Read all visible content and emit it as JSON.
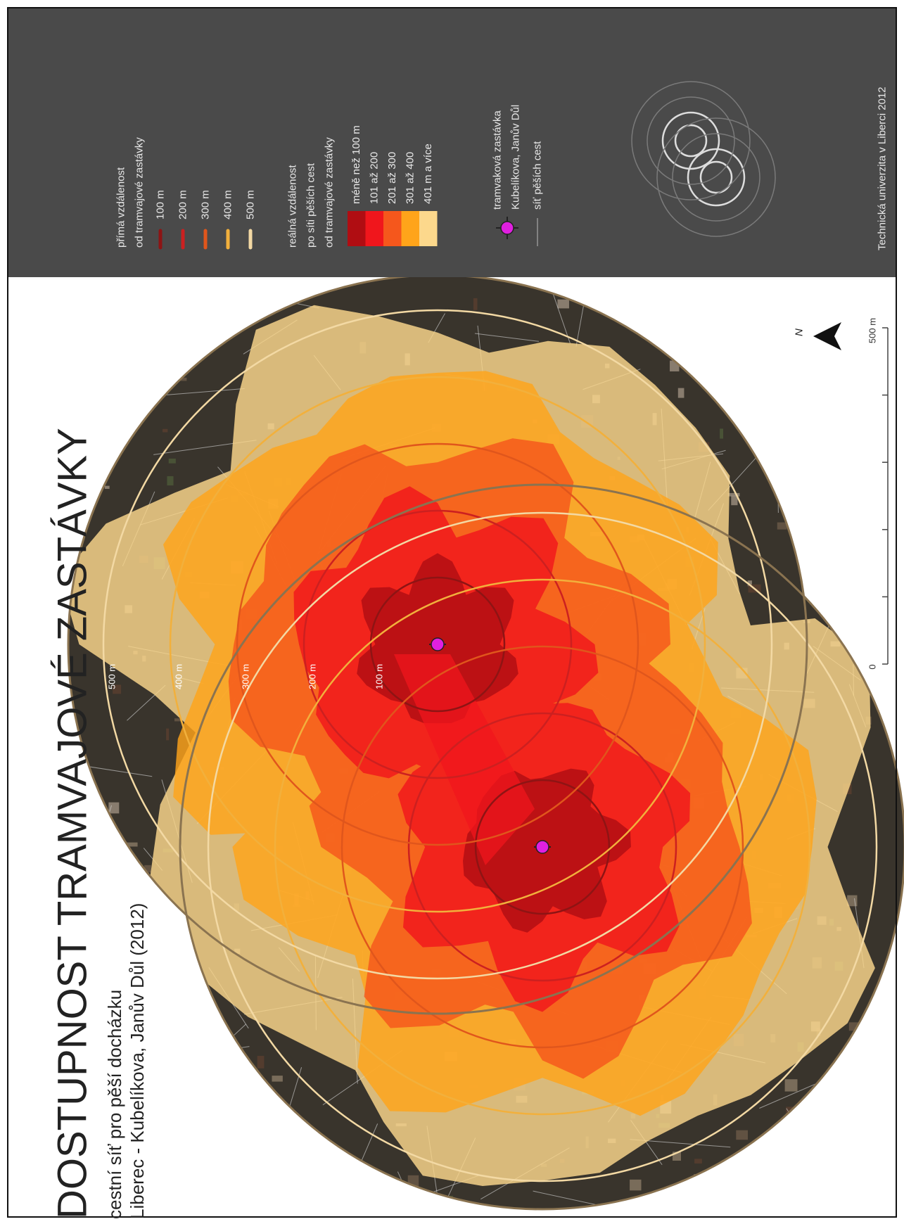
{
  "title": "DOSTUPNOST TRAMVAJOVÉ ZASTÁVKY",
  "subtitle": [
    "cestní síť pro pěší docházku",
    "Liberec - Kubelíkova, Janův Důl (2012)"
  ],
  "legend": {
    "direct": {
      "heading": [
        "přímá vzdálenost",
        "od tramvajové zastávky"
      ],
      "items": [
        {
          "label": "100 m",
          "color": "#8e1414"
        },
        {
          "label": "200 m",
          "color": "#cc2020"
        },
        {
          "label": "300 m",
          "color": "#e0561c"
        },
        {
          "label": "400 m",
          "color": "#f2b03c"
        },
        {
          "label": "500 m",
          "color": "#f3d9a4"
        }
      ]
    },
    "real": {
      "heading": [
        "reálná vzdálenost",
        "po síti pěších cest",
        "od tramvajové zastávky"
      ],
      "items": [
        {
          "label": "méně než 100 m",
          "color": "#b00d12"
        },
        {
          "label": "101 až 200",
          "color": "#f0161c"
        },
        {
          "label": "201 až 300",
          "color": "#f5571c"
        },
        {
          "label": "301 až 400",
          "color": "#ffa41a"
        },
        {
          "label": "401 m a více",
          "color": "#fcd88c"
        }
      ]
    },
    "stop": [
      "tramvaková zastávka",
      "Kubelíkova, Janův Důl"
    ],
    "network": "síť pěších cest"
  },
  "footer": "Technická univerzita v Liberci 2012",
  "map": {
    "ring_labels": [
      "500 m",
      "400 m",
      "300 m",
      "200 m",
      "100 m"
    ],
    "north": "N",
    "scale": [
      "0",
      "500 m"
    ]
  }
}
